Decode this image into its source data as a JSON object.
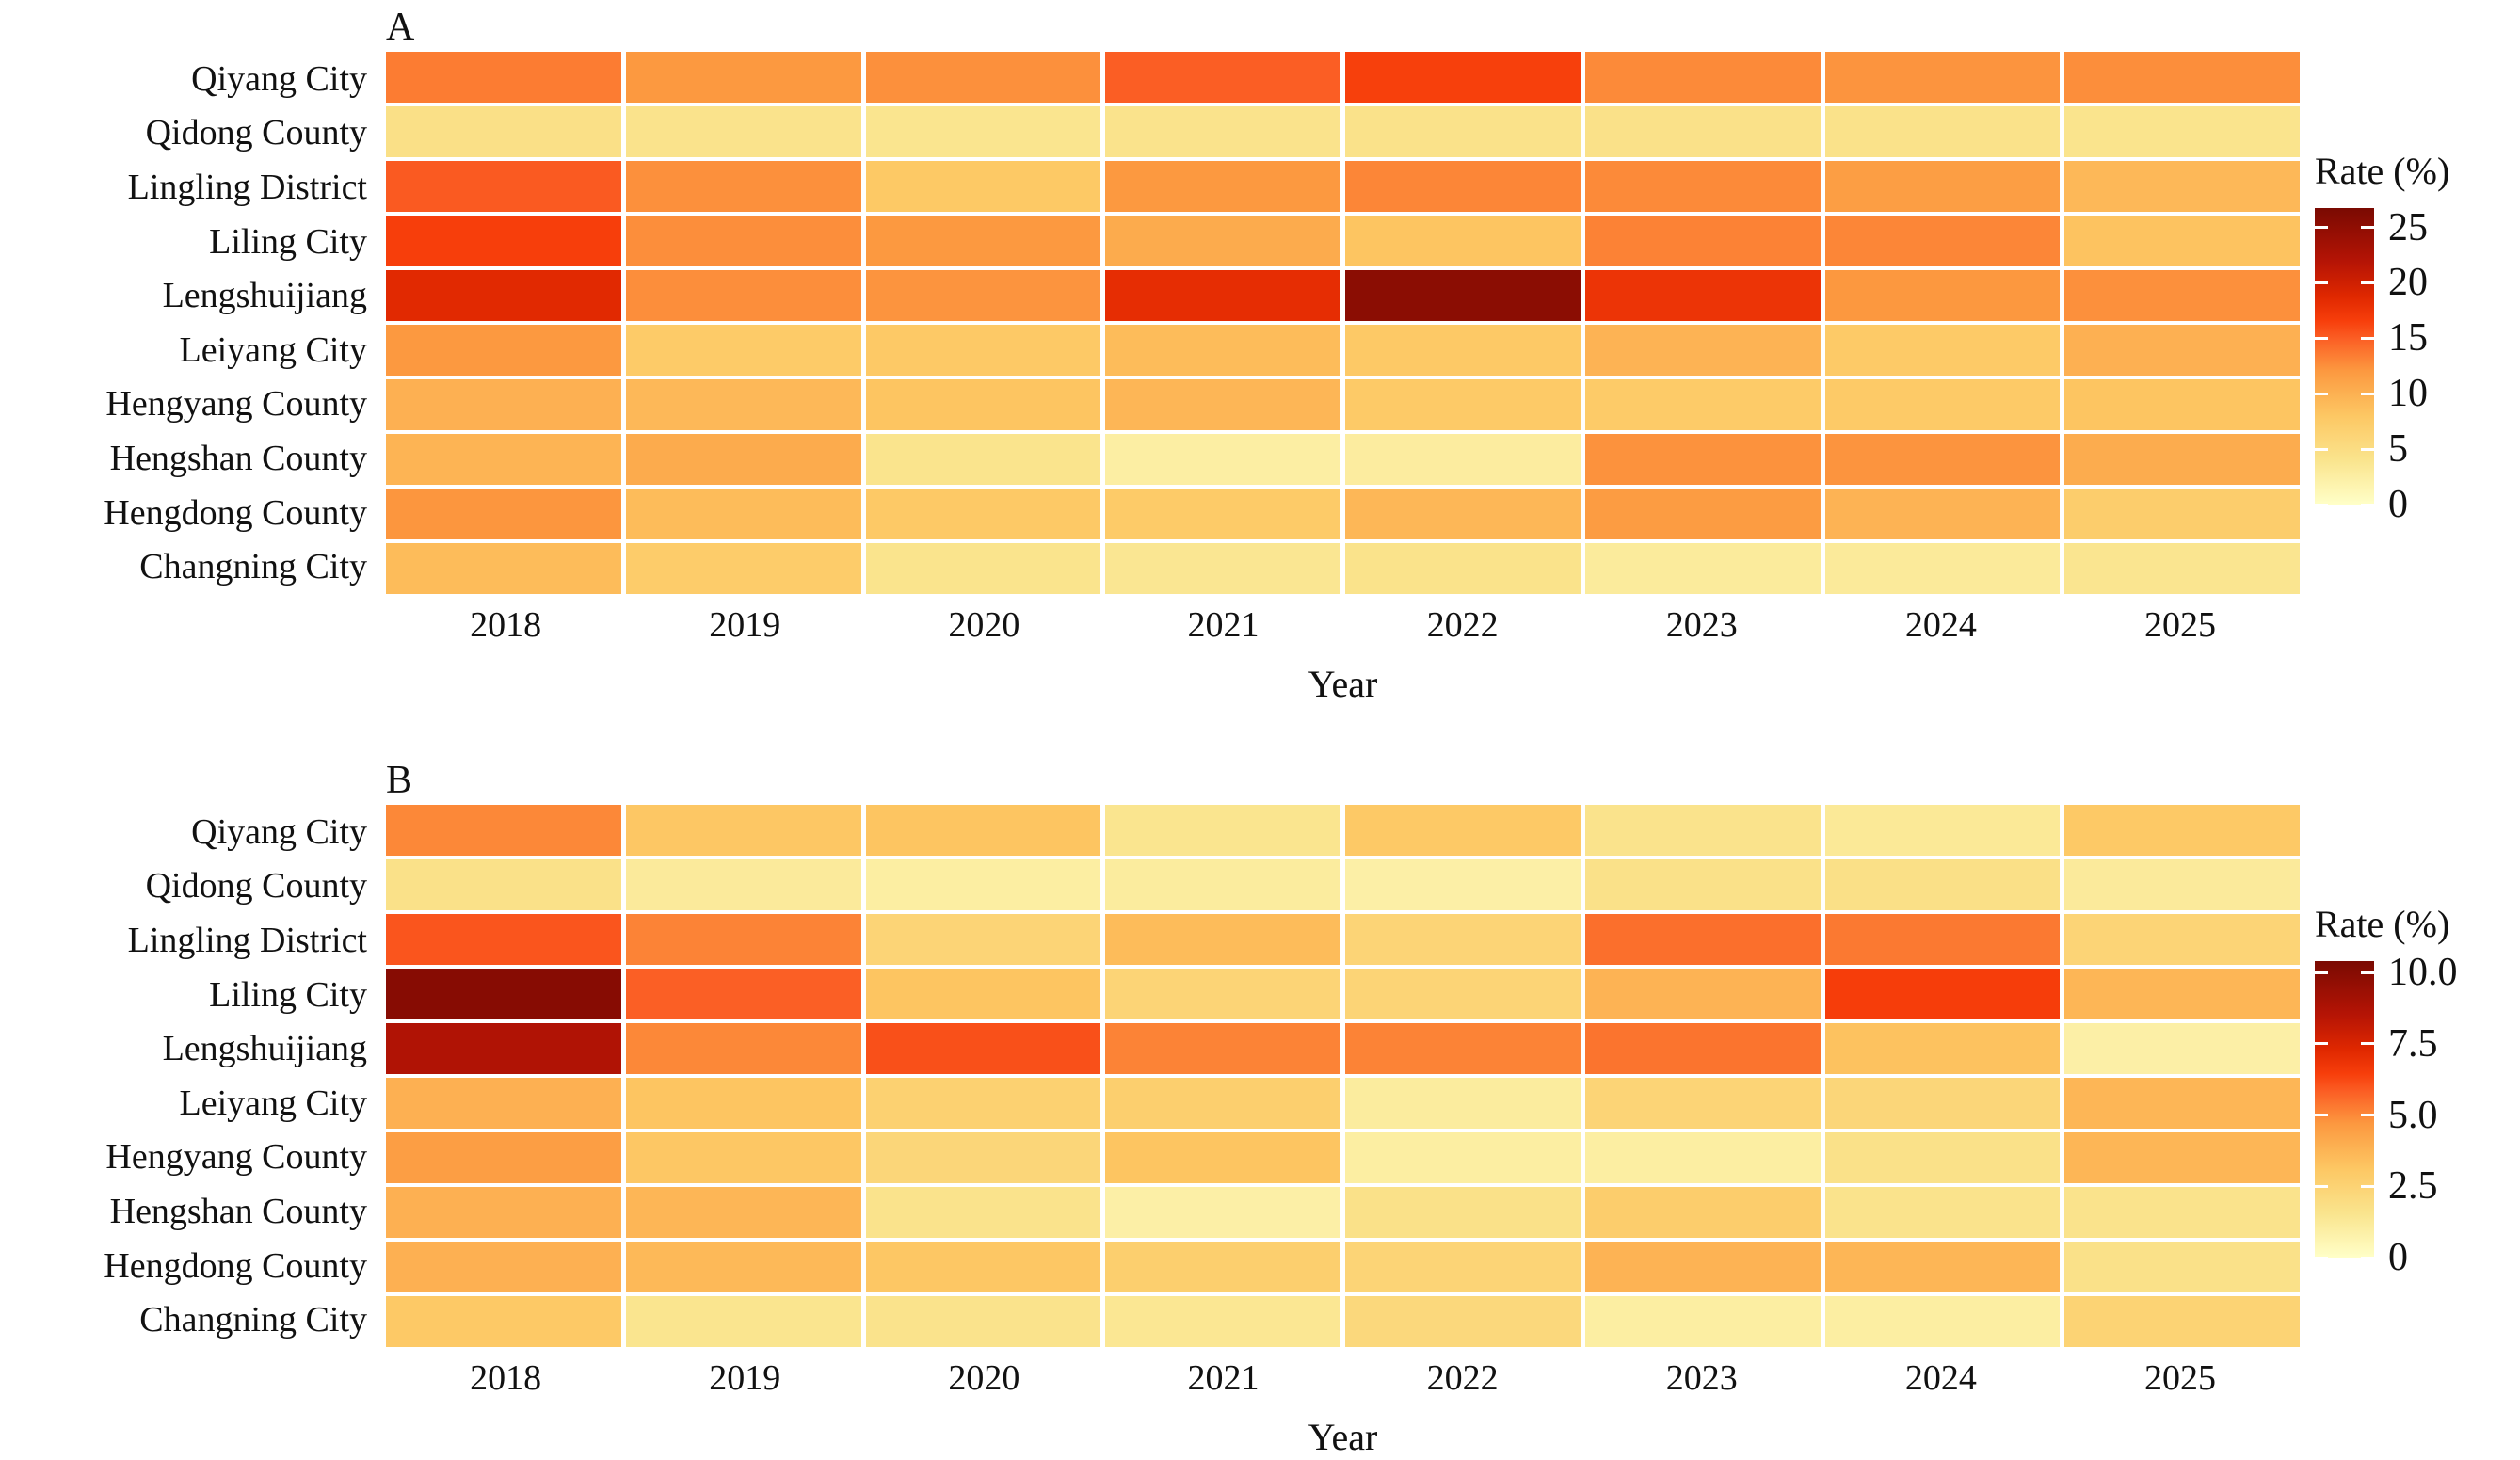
{
  "figure_title": "",
  "axis": {
    "xlabel": "Year"
  },
  "palette": {
    "description": "yellow-orange-red heat colormap, light=low dark=high",
    "stops": [
      [
        0.0,
        "#ffffc8"
      ],
      [
        0.15,
        "#fae48d"
      ],
      [
        0.3,
        "#fdc763"
      ],
      [
        0.45,
        "#fc9940"
      ],
      [
        0.56,
        "#fb5e24"
      ],
      [
        0.62,
        "#f73e0b"
      ],
      [
        0.7,
        "#e02800"
      ],
      [
        0.82,
        "#b51405"
      ],
      [
        1.0,
        "#7a0a02"
      ]
    ]
  },
  "chart_data": [
    {
      "type": "heatmap",
      "title": "A",
      "xlabel": "Year",
      "x": [
        "2018",
        "2019",
        "2020",
        "2021",
        "2022",
        "2023",
        "2024",
        "2025"
      ],
      "y": [
        "Qiyang City",
        "Qidong County",
        "Lingling District",
        "Liling City",
        "Lengshuijiang",
        "Leiyang City",
        "Hengyang County",
        "Hengshan County",
        "Hengdong County",
        "Changning City"
      ],
      "values": [
        [
          13.5,
          12.0,
          12.5,
          15.0,
          16.5,
          12.8,
          12.3,
          12.6
        ],
        [
          4.6,
          4.1,
          3.9,
          4.1,
          4.3,
          4.4,
          4.3,
          4.0
        ],
        [
          15.2,
          12.5,
          7.8,
          12.0,
          13.0,
          12.8,
          11.6,
          9.3
        ],
        [
          16.6,
          12.6,
          12.0,
          10.5,
          8.2,
          13.2,
          13.0,
          8.4
        ],
        [
          18.6,
          12.6,
          12.3,
          18.2,
          25.4,
          17.6,
          12.1,
          12.5
        ],
        [
          12.0,
          7.5,
          7.7,
          9.0,
          7.7,
          9.8,
          7.6,
          10.0
        ],
        [
          10.0,
          9.3,
          8.2,
          9.5,
          7.6,
          7.5,
          7.6,
          8.2
        ],
        [
          9.7,
          10.5,
          4.0,
          2.5,
          2.8,
          12.4,
          12.3,
          10.4
        ],
        [
          12.2,
          9.0,
          7.7,
          7.5,
          9.4,
          11.8,
          9.8,
          7.2
        ],
        [
          9.0,
          7.4,
          4.0,
          3.7,
          4.2,
          3.0,
          3.1,
          3.8
        ]
      ],
      "legend": {
        "title": "Rate (%)",
        "ticks": [
          {
            "label": "25",
            "value": 25
          },
          {
            "label": "20",
            "value": 20
          },
          {
            "label": "15",
            "value": 15
          },
          {
            "label": "10",
            "value": 10
          },
          {
            "label": "5",
            "value": 5
          },
          {
            "label": "0",
            "value": 0
          }
        ],
        "scale_min": 0,
        "scale_max": 26.75
      }
    },
    {
      "type": "heatmap",
      "title": "B",
      "xlabel": "Year",
      "x": [
        "2018",
        "2019",
        "2020",
        "2021",
        "2022",
        "2023",
        "2024",
        "2025"
      ],
      "y": [
        "Qiyang City",
        "Qidong County",
        "Lingling District",
        "Liling City",
        "Lengshuijiang",
        "Leiyang City",
        "Hengyang County",
        "Hengshan County",
        "Hengdong County",
        "Changning City"
      ],
      "values": [
        [
          5.0,
          3.1,
          3.2,
          1.5,
          3.0,
          1.6,
          1.3,
          3.0
        ],
        [
          1.7,
          1.2,
          1.0,
          1.1,
          0.9,
          1.7,
          1.8,
          1.2
        ],
        [
          6.0,
          5.1,
          2.4,
          3.5,
          2.4,
          5.5,
          5.3,
          2.4
        ],
        [
          10.0,
          5.8,
          3.2,
          2.4,
          2.4,
          3.8,
          6.5,
          3.7
        ],
        [
          8.7,
          5.0,
          6.1,
          5.1,
          5.1,
          5.4,
          3.3,
          0.9
        ],
        [
          3.9,
          3.2,
          2.6,
          2.7,
          1.1,
          2.4,
          2.3,
          3.7
        ],
        [
          4.5,
          3.1,
          2.3,
          3.2,
          1.0,
          1.0,
          1.7,
          3.7
        ],
        [
          3.9,
          3.7,
          1.6,
          0.9,
          1.7,
          2.8,
          1.6,
          1.6
        ],
        [
          3.9,
          3.6,
          3.1,
          2.7,
          2.4,
          3.8,
          3.7,
          1.7
        ],
        [
          3.0,
          1.5,
          1.6,
          1.4,
          2.2,
          1.0,
          1.0,
          2.5
        ]
      ],
      "legend": {
        "title": "Rate (%)",
        "ticks": [
          {
            "label": "10.0",
            "value": 10
          },
          {
            "label": "7.5",
            "value": 7.5
          },
          {
            "label": "5.0",
            "value": 5
          },
          {
            "label": "2.5",
            "value": 2.5
          },
          {
            "label": "0",
            "value": 0
          }
        ],
        "scale_min": 0,
        "scale_max": 10.4
      }
    }
  ]
}
